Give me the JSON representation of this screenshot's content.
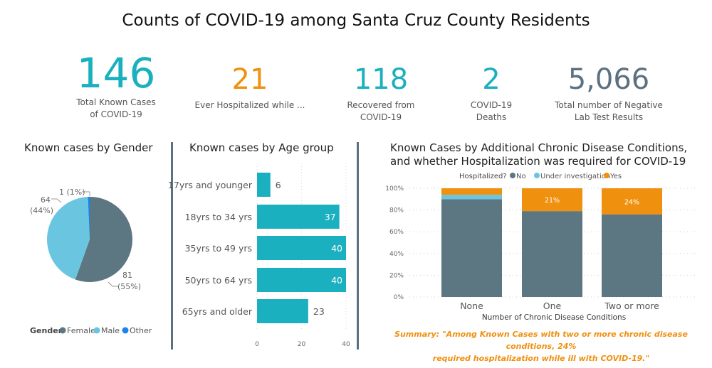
{
  "title": "Counts of COVID-19 among Santa Cruz County Residents",
  "kpis": [
    {
      "value": "146",
      "label1": "Total Known Cases",
      "label2": "of COVID-19",
      "color": "#1bb0bf"
    },
    {
      "value": "21",
      "label1": "Ever Hospitalized while ...",
      "label2": "",
      "color": "#f0900f"
    },
    {
      "value": "118",
      "label1": "Recovered from",
      "label2": "COVID-19",
      "color": "#1bb0bf"
    },
    {
      "value": "2",
      "label1": "COVID-19",
      "label2": "Deaths",
      "color": "#1bb0bf"
    },
    {
      "value": "5,066",
      "label1": "Total number of Negative",
      "label2": "Lab Test Results",
      "color": "#5c7180"
    }
  ],
  "chart_data": [
    {
      "type": "pie",
      "title": "Known cases by Gender",
      "legend_title": "Gender",
      "legend_position": "bottom",
      "slices": [
        {
          "name": "Female",
          "value": 81,
          "label": "81",
          "pct_label": "(55%)",
          "color": "#5c7682"
        },
        {
          "name": "Male",
          "value": 64,
          "label": "64",
          "pct_label": "(44%)",
          "color": "#6ac6e0"
        },
        {
          "name": "Other",
          "value": 1,
          "label": "1 (1%)",
          "pct_label": "",
          "color": "#1a84ef"
        }
      ]
    },
    {
      "type": "bar",
      "orientation": "horizontal",
      "title": "Known cases by Age group",
      "categories": [
        "17yrs and younger",
        "18yrs to 34 yrs",
        "35yrs to 49 yrs",
        "50yrs to 64 yrs",
        "65yrs and older"
      ],
      "values": [
        6,
        37,
        40,
        40,
        23
      ],
      "xlim": [
        0,
        40
      ],
      "xticks": [
        "0",
        "20",
        "40"
      ],
      "color": "#1bb0bf",
      "grid": true
    },
    {
      "type": "bar",
      "stacked": "100%",
      "title_line1": "Known Cases by Additional Chronic Disease Conditions,",
      "title_line2": "and whether Hospitalization was required for COVID-19",
      "legend_title": "Hospitalized?",
      "legend_position": "top",
      "categories": [
        "None",
        "One",
        "Two or more"
      ],
      "xlabel": "Number of Chronic Disease Conditions",
      "yticks": [
        "0%",
        "20%",
        "40%",
        "60%",
        "80%",
        "100%"
      ],
      "ylim": [
        0,
        100
      ],
      "grid": true,
      "series": [
        {
          "name": "No",
          "values": [
            90,
            79,
            76
          ],
          "color": "#5c7682",
          "labels": [
            "",
            "",
            ""
          ]
        },
        {
          "name": "Under investigation",
          "values": [
            4,
            0,
            0
          ],
          "color": "#6ac6e0",
          "labels": [
            "",
            "",
            ""
          ]
        },
        {
          "name": "Yes",
          "values": [
            6,
            21,
            24
          ],
          "color": "#f0900f",
          "labels": [
            "",
            "21%",
            "24%"
          ]
        }
      ]
    }
  ],
  "summary_line1": "Summary: \"Among Known Cases with two or more chronic disease conditions, 24%",
  "summary_line2": "required hospitalization while ill with COVID-19.\""
}
